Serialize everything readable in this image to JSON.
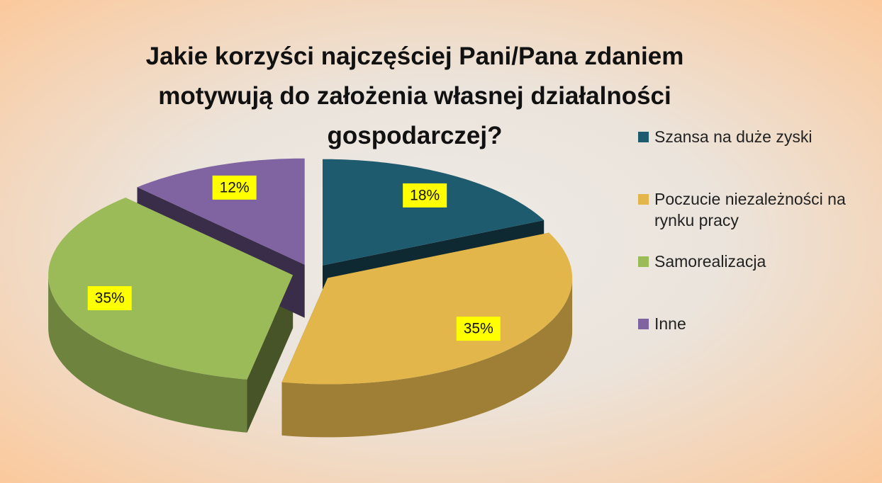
{
  "chart_data": {
    "type": "pie3d",
    "title": "Jakie korzyści najczęściej Pani/Pana zdaniem motywują do założenia własnej działalności gospodarczej?",
    "categories": [
      "Szansa na duże zyski",
      "Poczucie niezależności na rynku pracy",
      "Samorealizacja",
      "Inne"
    ],
    "values": [
      18,
      35,
      35,
      12
    ],
    "value_labels": [
      "18%",
      "35%",
      "35%",
      "12%"
    ],
    "colors": [
      "#1f5b6f",
      "#e2b64b",
      "#9bbb59",
      "#8064a2"
    ],
    "legend": "right"
  }
}
